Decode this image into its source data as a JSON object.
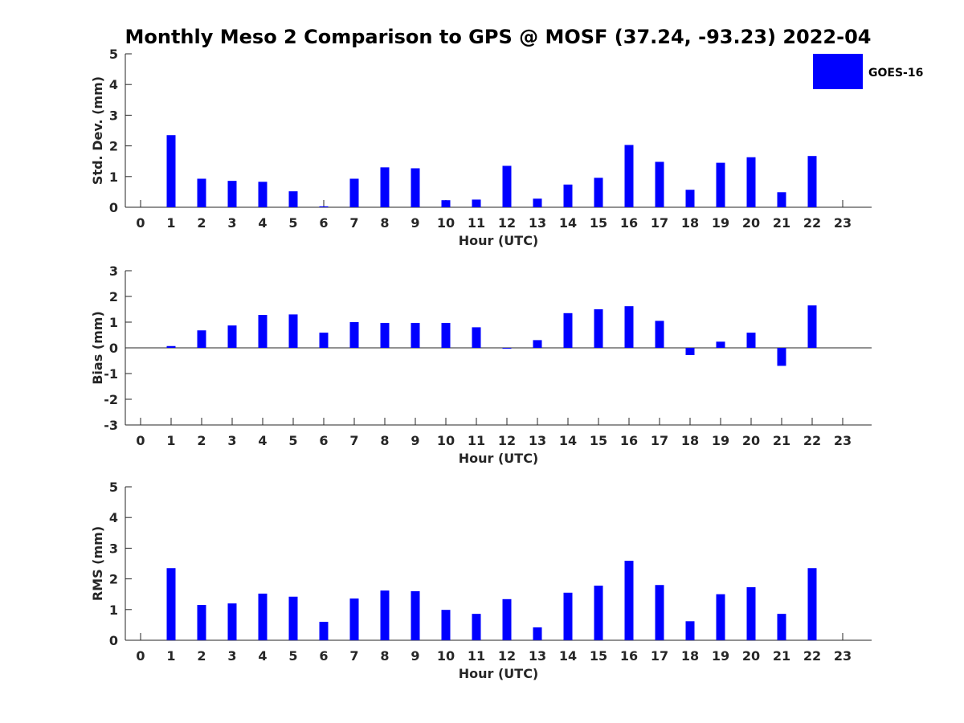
{
  "title": "Monthly Meso 2 Comparison to GPS @ MOSF (37.24, -93.23) 2022-04",
  "legend": {
    "label": "GOES-16",
    "color": "#0000ff"
  },
  "chart_data": [
    {
      "type": "bar",
      "name": "stddev",
      "title": "Monthly Meso 2 Comparison to GPS @ MOSF (37.24, -93.23) 2022-04",
      "xlabel": "Hour (UTC)",
      "ylabel": "Std. Dev. (mm)",
      "ylim": [
        0,
        5
      ],
      "yticks": [
        "0",
        "1",
        "2",
        "3",
        "4",
        "5"
      ],
      "categories": [
        "0",
        "1",
        "2",
        "3",
        "4",
        "5",
        "6",
        "7",
        "8",
        "9",
        "10",
        "11",
        "12",
        "13",
        "14",
        "15",
        "16",
        "17",
        "18",
        "19",
        "20",
        "21",
        "22",
        "23"
      ],
      "series": [
        {
          "name": "GOES-16",
          "values": [
            null,
            2.35,
            0.93,
            0.86,
            0.83,
            0.52,
            0.03,
            0.93,
            1.3,
            1.27,
            0.23,
            0.25,
            1.35,
            0.28,
            0.74,
            0.96,
            2.03,
            1.48,
            0.57,
            1.45,
            1.63,
            0.49,
            1.67,
            null
          ]
        }
      ]
    },
    {
      "type": "bar",
      "name": "bias",
      "xlabel": "Hour (UTC)",
      "ylabel": "Bias (mm)",
      "ylim": [
        -3,
        3
      ],
      "yticks": [
        "-3",
        "-2",
        "-1",
        "0",
        "1",
        "2",
        "3"
      ],
      "categories": [
        "0",
        "1",
        "2",
        "3",
        "4",
        "5",
        "6",
        "7",
        "8",
        "9",
        "10",
        "11",
        "12",
        "13",
        "14",
        "15",
        "16",
        "17",
        "18",
        "19",
        "20",
        "21",
        "22",
        "23"
      ],
      "series": [
        {
          "name": "GOES-16",
          "values": [
            null,
            0.07,
            0.68,
            0.87,
            1.28,
            1.3,
            0.59,
            1.0,
            0.97,
            0.97,
            0.97,
            0.8,
            0.0,
            0.3,
            1.35,
            1.5,
            1.62,
            1.05,
            -0.28,
            0.24,
            0.59,
            -0.7,
            1.65,
            null
          ]
        }
      ]
    },
    {
      "type": "bar",
      "name": "rms",
      "xlabel": "Hour (UTC)",
      "ylabel": "RMS (mm)",
      "ylim": [
        0,
        5
      ],
      "yticks": [
        "0",
        "1",
        "2",
        "3",
        "4",
        "5"
      ],
      "categories": [
        "0",
        "1",
        "2",
        "3",
        "4",
        "5",
        "6",
        "7",
        "8",
        "9",
        "10",
        "11",
        "12",
        "13",
        "14",
        "15",
        "16",
        "17",
        "18",
        "19",
        "20",
        "21",
        "22",
        "23"
      ],
      "series": [
        {
          "name": "GOES-16",
          "values": [
            null,
            2.35,
            1.15,
            1.2,
            1.52,
            1.42,
            0.6,
            1.36,
            1.62,
            1.6,
            0.99,
            0.86,
            1.34,
            0.42,
            1.55,
            1.78,
            2.59,
            1.8,
            0.62,
            1.5,
            1.73,
            0.86,
            2.35,
            null
          ]
        }
      ]
    }
  ]
}
